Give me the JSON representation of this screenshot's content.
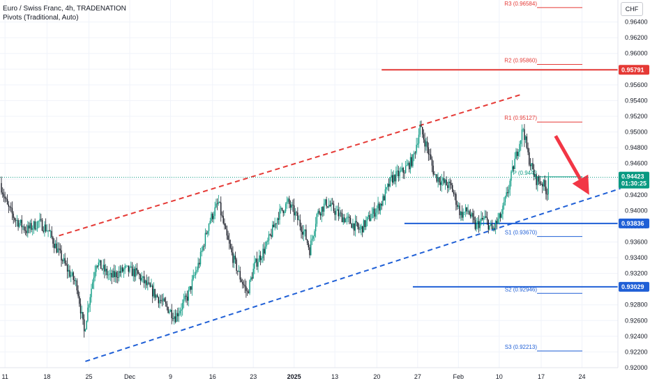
{
  "header": {
    "title": "Euro / Swiss Franc, 4h, TRADENATION",
    "indicator": "Pivots (Traditional, Auto)",
    "currency_button": "CHF"
  },
  "colors": {
    "up": "#089981",
    "down": "#131722",
    "support": "#1f5fd6",
    "resistance": "#e53935",
    "arrow": "#f23645",
    "pivot_line": "#e53935",
    "pivot_s_line": "#1f5fd6",
    "price_tag": "#089981",
    "grid": "#f0f3fa"
  },
  "chart_data": {
    "type": "candlestick",
    "y_axis": {
      "min": 0.92,
      "max": 0.9668,
      "ticks": [
        "0.96400",
        "0.96200",
        "0.96000",
        "0.95800",
        "0.95600",
        "0.95400",
        "0.95200",
        "0.95000",
        "0.94800",
        "0.94600",
        "0.94400",
        "0.94200",
        "0.94000",
        "0.93800",
        "0.93600",
        "0.93400",
        "0.93200",
        "0.93000",
        "0.92800",
        "0.92600",
        "0.92400",
        "0.92200",
        "0.92000"
      ],
      "tick_values": [
        0.964,
        0.962,
        0.96,
        0.958,
        0.956,
        0.954,
        0.952,
        0.95,
        0.948,
        0.946,
        0.944,
        0.942,
        0.94,
        0.938,
        0.936,
        0.934,
        0.932,
        0.93,
        0.928,
        0.926,
        0.924,
        0.922,
        0.92
      ]
    },
    "x_axis": {
      "labels": [
        "11",
        "18",
        "25",
        "Dec",
        "9",
        "16",
        "23",
        "2025",
        "13",
        "20",
        "27",
        "Feb",
        "10",
        "17",
        "24"
      ],
      "label_bar_index": [
        3,
        38,
        73,
        107,
        141,
        176,
        210,
        244,
        278,
        313,
        347,
        381,
        415,
        450,
        484
      ],
      "bold_labels": [
        "2025"
      ]
    },
    "bars_total": 496,
    "price_path": [
      [
        0,
        0.9435
      ],
      [
        6,
        0.9405
      ],
      [
        12,
        0.939
      ],
      [
        22,
        0.9375
      ],
      [
        32,
        0.9385
      ],
      [
        40,
        0.9375
      ],
      [
        46,
        0.9355
      ],
      [
        56,
        0.9325
      ],
      [
        64,
        0.9305
      ],
      [
        70,
        0.9245
      ],
      [
        74,
        0.9285
      ],
      [
        80,
        0.9335
      ],
      [
        92,
        0.9315
      ],
      [
        104,
        0.9325
      ],
      [
        114,
        0.932
      ],
      [
        122,
        0.9305
      ],
      [
        134,
        0.9285
      ],
      [
        146,
        0.9265
      ],
      [
        156,
        0.929
      ],
      [
        166,
        0.9335
      ],
      [
        174,
        0.9385
      ],
      [
        182,
        0.941
      ],
      [
        188,
        0.937
      ],
      [
        194,
        0.934
      ],
      [
        200,
        0.9315
      ],
      [
        206,
        0.9295
      ],
      [
        212,
        0.933
      ],
      [
        222,
        0.9355
      ],
      [
        232,
        0.9395
      ],
      [
        240,
        0.941
      ],
      [
        246,
        0.9395
      ],
      [
        254,
        0.937
      ],
      [
        258,
        0.935
      ],
      [
        264,
        0.9395
      ],
      [
        272,
        0.941
      ],
      [
        282,
        0.9395
      ],
      [
        292,
        0.9385
      ],
      [
        300,
        0.9375
      ],
      [
        310,
        0.9395
      ],
      [
        318,
        0.941
      ],
      [
        326,
        0.944
      ],
      [
        336,
        0.945
      ],
      [
        344,
        0.9465
      ],
      [
        350,
        0.9505
      ],
      [
        356,
        0.948
      ],
      [
        362,
        0.9445
      ],
      [
        370,
        0.9435
      ],
      [
        376,
        0.943
      ],
      [
        384,
        0.9395
      ],
      [
        390,
        0.94
      ],
      [
        396,
        0.938
      ],
      [
        404,
        0.939
      ],
      [
        410,
        0.9375
      ],
      [
        418,
        0.9395
      ],
      [
        424,
        0.943
      ],
      [
        430,
        0.947
      ],
      [
        436,
        0.9505
      ],
      [
        440,
        0.947
      ],
      [
        446,
        0.944
      ],
      [
        452,
        0.9435
      ],
      [
        456,
        0.9424
      ]
    ],
    "last_price": "0.94423",
    "countdown": "01:30:25",
    "pivots": [
      {
        "name": "R3",
        "label": "R3 (0.96584)",
        "value": 0.96584
      },
      {
        "name": "R2",
        "label": "R2 (0.95860)",
        "value": 0.9586
      },
      {
        "name": "R1",
        "label": "R1 (0.95127)",
        "value": 0.95127
      },
      {
        "name": "P",
        "label": "P (0.9443",
        "value": 0.9443
      },
      {
        "name": "S1",
        "label": "S1 (0.93670)",
        "value": 0.9367
      },
      {
        "name": "S2",
        "label": "S2 (0.92946)",
        "value": 0.92946
      },
      {
        "name": "S3",
        "label": "S3 (0.92213)",
        "value": 0.92213
      }
    ],
    "horizontal_levels": [
      {
        "value": 0.95791,
        "label": "0.95791",
        "color": "#e53935",
        "from_bar": 317
      },
      {
        "value": 0.93836,
        "label": "0.93836",
        "color": "#1f5fd6",
        "from_bar": 336
      },
      {
        "value": 0.93029,
        "label": "0.93029",
        "color": "#1f5fd6",
        "from_bar": 343
      }
    ],
    "channel_lines": [
      {
        "kind": "resistance",
        "color": "#e53935",
        "from": [
          48,
          0.9368
        ],
        "to": [
          434,
          0.9548
        ]
      },
      {
        "kind": "support",
        "color": "#1f5fd6",
        "from": [
          70,
          0.9208
        ],
        "to": [
          516,
          0.9428
        ]
      }
    ],
    "arrow": {
      "from": [
        462,
        0.9495
      ],
      "to": [
        490,
        0.942
      ]
    }
  }
}
